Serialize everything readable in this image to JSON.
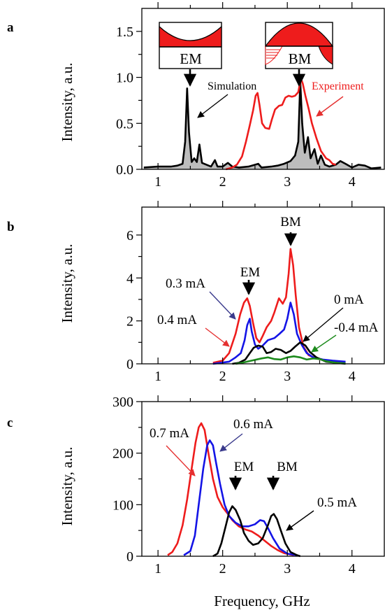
{
  "figure": {
    "xlabel": "Frequency, GHz",
    "colors": {
      "black": "#000000",
      "red": "#ee1c1c",
      "blue": "#1414e6",
      "green": "#1c8a1c",
      "gray_fill": "#bdbdbd",
      "arrow_navy": "#3a3a8c",
      "arrow_red": "#e53030"
    }
  },
  "chart_data": [
    {
      "panel": "a",
      "type": "line",
      "ylabel": "Intensity, a.u.",
      "xlim": [
        0.75,
        4.5
      ],
      "ylim": [
        0,
        1.75
      ],
      "xticks": [
        "1",
        "2",
        "3",
        "4"
      ],
      "yticks": [
        "0.0",
        "0.5",
        "1.0",
        "1.5"
      ],
      "ytick_values": [
        0,
        0.5,
        1.0,
        1.5
      ],
      "annotations": {
        "simulation": "Simulation",
        "experiment": "Experiment",
        "em": "EM",
        "bm": "BM"
      },
      "series": [
        {
          "name": "Simulation",
          "color": "#000000",
          "fill": "#bdbdbd",
          "points": [
            [
              0.78,
              0.02
            ],
            [
              1.0,
              0.03
            ],
            [
              1.2,
              0.03
            ],
            [
              1.3,
              0.04
            ],
            [
              1.38,
              0.06
            ],
            [
              1.42,
              0.3
            ],
            [
              1.45,
              0.88
            ],
            [
              1.48,
              0.4
            ],
            [
              1.52,
              0.08
            ],
            [
              1.56,
              0.12
            ],
            [
              1.6,
              0.08
            ],
            [
              1.64,
              0.27
            ],
            [
              1.68,
              0.07
            ],
            [
              1.75,
              0.05
            ],
            [
              1.82,
              0.03
            ],
            [
              1.88,
              0.1
            ],
            [
              1.92,
              0.03
            ],
            [
              2.0,
              0.03
            ],
            [
              2.08,
              0.07
            ],
            [
              2.15,
              0.03
            ],
            [
              2.25,
              0.02
            ],
            [
              2.4,
              0.03
            ],
            [
              2.55,
              0.06
            ],
            [
              2.6,
              0.02
            ],
            [
              2.75,
              0.03
            ],
            [
              2.85,
              0.04
            ],
            [
              2.95,
              0.06
            ],
            [
              3.05,
              0.09
            ],
            [
              3.12,
              0.15
            ],
            [
              3.17,
              0.3
            ],
            [
              3.2,
              0.96
            ],
            [
              3.23,
              0.5
            ],
            [
              3.27,
              0.18
            ],
            [
              3.32,
              0.35
            ],
            [
              3.36,
              0.12
            ],
            [
              3.42,
              0.22
            ],
            [
              3.47,
              0.06
            ],
            [
              3.52,
              0.15
            ],
            [
              3.58,
              0.05
            ],
            [
              3.65,
              0.03
            ],
            [
              3.75,
              0.05
            ],
            [
              3.82,
              0.09
            ],
            [
              3.9,
              0.06
            ],
            [
              4.0,
              0.02
            ],
            [
              4.1,
              0.05
            ],
            [
              4.2,
              0.04
            ],
            [
              4.3,
              0.01
            ],
            [
              4.45,
              0.02
            ]
          ]
        },
        {
          "name": "Experiment",
          "color": "#ee1c1c",
          "points": [
            [
              2.05,
              0.0
            ],
            [
              2.15,
              0.02
            ],
            [
              2.22,
              0.05
            ],
            [
              2.3,
              0.14
            ],
            [
              2.36,
              0.3
            ],
            [
              2.42,
              0.48
            ],
            [
              2.47,
              0.64
            ],
            [
              2.51,
              0.8
            ],
            [
              2.54,
              0.83
            ],
            [
              2.57,
              0.7
            ],
            [
              2.61,
              0.5
            ],
            [
              2.66,
              0.45
            ],
            [
              2.72,
              0.44
            ],
            [
              2.76,
              0.54
            ],
            [
              2.81,
              0.65
            ],
            [
              2.87,
              0.69
            ],
            [
              2.92,
              0.7
            ],
            [
              2.97,
              0.78
            ],
            [
              3.02,
              0.8
            ],
            [
              3.07,
              0.79
            ],
            [
              3.12,
              0.8
            ],
            [
              3.17,
              0.84
            ],
            [
              3.21,
              0.99
            ],
            [
              3.24,
              0.93
            ],
            [
              3.28,
              0.8
            ],
            [
              3.33,
              0.66
            ],
            [
              3.38,
              0.5
            ],
            [
              3.45,
              0.34
            ],
            [
              3.52,
              0.2
            ],
            [
              3.6,
              0.12
            ],
            [
              3.65,
              0.1
            ],
            [
              3.7,
              0.06
            ],
            [
              3.75,
              0.05
            ]
          ]
        }
      ]
    },
    {
      "panel": "b",
      "type": "line",
      "ylabel": "Intensity, a.u.",
      "xlim": [
        0.75,
        4.5
      ],
      "ylim": [
        0,
        7.3
      ],
      "xticks": [
        "1",
        "2",
        "3",
        "4"
      ],
      "yticks": [
        "0",
        "2",
        "4",
        "6"
      ],
      "ytick_values": [
        0,
        2,
        4,
        6
      ],
      "annotations": {
        "em": "EM",
        "bm": "BM"
      },
      "series": [
        {
          "name": "0.4 mA",
          "color": "#ee1c1c",
          "points": [
            [
              1.85,
              0.05
            ],
            [
              2.0,
              0.15
            ],
            [
              2.1,
              0.5
            ],
            [
              2.2,
              1.4
            ],
            [
              2.27,
              2.3
            ],
            [
              2.33,
              2.85
            ],
            [
              2.38,
              3.05
            ],
            [
              2.42,
              2.7
            ],
            [
              2.47,
              1.9
            ],
            [
              2.52,
              1.2
            ],
            [
              2.57,
              1.0
            ],
            [
              2.62,
              1.3
            ],
            [
              2.68,
              1.7
            ],
            [
              2.75,
              2.0
            ],
            [
              2.8,
              2.4
            ],
            [
              2.87,
              3.05
            ],
            [
              2.93,
              2.8
            ],
            [
              2.98,
              3.1
            ],
            [
              3.02,
              4.2
            ],
            [
              3.05,
              5.35
            ],
            [
              3.09,
              4.6
            ],
            [
              3.13,
              3.2
            ],
            [
              3.18,
              1.7
            ],
            [
              3.25,
              0.8
            ],
            [
              3.33,
              0.4
            ],
            [
              3.45,
              0.25
            ],
            [
              3.6,
              0.15
            ],
            [
              3.75,
              0.1
            ],
            [
              3.9,
              0.05
            ]
          ]
        },
        {
          "name": "0.3 mA",
          "color": "#1414e6",
          "points": [
            [
              1.85,
              0.0
            ],
            [
              2.1,
              0.1
            ],
            [
              2.2,
              0.3
            ],
            [
              2.28,
              0.5
            ],
            [
              2.34,
              1.1
            ],
            [
              2.38,
              1.8
            ],
            [
              2.42,
              2.1
            ],
            [
              2.45,
              1.5
            ],
            [
              2.5,
              0.9
            ],
            [
              2.55,
              0.7
            ],
            [
              2.62,
              0.85
            ],
            [
              2.7,
              1.1
            ],
            [
              2.8,
              1.2
            ],
            [
              2.88,
              1.4
            ],
            [
              2.95,
              1.6
            ],
            [
              3.0,
              2.1
            ],
            [
              3.05,
              2.85
            ],
            [
              3.1,
              2.3
            ],
            [
              3.15,
              1.4
            ],
            [
              3.22,
              0.9
            ],
            [
              3.3,
              0.5
            ],
            [
              3.4,
              0.3
            ],
            [
              3.55,
              0.2
            ],
            [
              3.7,
              0.15
            ],
            [
              3.9,
              0.1
            ]
          ]
        },
        {
          "name": "0 mA",
          "color": "#000000",
          "points": [
            [
              2.15,
              0.0
            ],
            [
              2.25,
              0.05
            ],
            [
              2.35,
              0.2
            ],
            [
              2.42,
              0.5
            ],
            [
              2.48,
              0.75
            ],
            [
              2.55,
              0.85
            ],
            [
              2.62,
              0.8
            ],
            [
              2.68,
              0.5
            ],
            [
              2.75,
              0.55
            ],
            [
              2.82,
              0.7
            ],
            [
              2.9,
              0.65
            ],
            [
              2.98,
              0.5
            ],
            [
              3.05,
              0.6
            ],
            [
              3.12,
              0.8
            ],
            [
              3.2,
              1.0
            ],
            [
              3.28,
              0.85
            ],
            [
              3.35,
              0.55
            ],
            [
              3.45,
              0.3
            ],
            [
              3.6,
              0.1
            ],
            [
              3.75,
              0.05
            ],
            [
              3.9,
              0.0
            ]
          ]
        },
        {
          "name": "-0.4 mA",
          "color": "#1c8a1c",
          "points": [
            [
              2.2,
              0.0
            ],
            [
              2.3,
              0.05
            ],
            [
              2.45,
              0.15
            ],
            [
              2.6,
              0.25
            ],
            [
              2.7,
              0.3
            ],
            [
              2.8,
              0.22
            ],
            [
              2.9,
              0.2
            ],
            [
              3.0,
              0.3
            ],
            [
              3.1,
              0.35
            ],
            [
              3.2,
              0.3
            ],
            [
              3.3,
              0.2
            ],
            [
              3.4,
              0.25
            ],
            [
              3.5,
              0.22
            ],
            [
              3.6,
              0.12
            ],
            [
              3.75,
              0.05
            ],
            [
              3.9,
              0.02
            ]
          ]
        }
      ]
    },
    {
      "panel": "c",
      "type": "line",
      "ylabel": "Intensity, a.u.",
      "xlim": [
        0.75,
        4.5
      ],
      "ylim": [
        0,
        300
      ],
      "xticks": [
        "1",
        "2",
        "3",
        "4"
      ],
      "yticks": [
        "0",
        "100",
        "200",
        "300"
      ],
      "ytick_values": [
        0,
        100,
        200,
        300
      ],
      "annotations": {
        "em": "EM",
        "bm": "BM"
      },
      "series": [
        {
          "name": "0.7 mA",
          "color": "#ee1c1c",
          "points": [
            [
              1.15,
              2
            ],
            [
              1.22,
              8
            ],
            [
              1.3,
              25
            ],
            [
              1.38,
              60
            ],
            [
              1.45,
              110
            ],
            [
              1.52,
              170
            ],
            [
              1.58,
              220
            ],
            [
              1.63,
              250
            ],
            [
              1.67,
              258
            ],
            [
              1.72,
              245
            ],
            [
              1.78,
              200
            ],
            [
              1.85,
              150
            ],
            [
              1.92,
              115
            ],
            [
              2.0,
              95
            ],
            [
              2.08,
              82
            ],
            [
              2.15,
              70
            ],
            [
              2.25,
              58
            ],
            [
              2.35,
              52
            ],
            [
              2.45,
              48
            ],
            [
              2.55,
              40
            ],
            [
              2.65,
              30
            ],
            [
              2.75,
              20
            ],
            [
              2.85,
              12
            ],
            [
              2.95,
              6
            ],
            [
              3.1,
              2
            ]
          ]
        },
        {
          "name": "0.6 mA",
          "color": "#1414e6",
          "points": [
            [
              1.4,
              2
            ],
            [
              1.5,
              10
            ],
            [
              1.57,
              40
            ],
            [
              1.63,
              100
            ],
            [
              1.7,
              170
            ],
            [
              1.76,
              215
            ],
            [
              1.8,
              225
            ],
            [
              1.85,
              215
            ],
            [
              1.9,
              180
            ],
            [
              1.96,
              140
            ],
            [
              2.03,
              100
            ],
            [
              2.1,
              78
            ],
            [
              2.2,
              65
            ],
            [
              2.3,
              58
            ],
            [
              2.4,
              58
            ],
            [
              2.5,
              62
            ],
            [
              2.58,
              70
            ],
            [
              2.64,
              68
            ],
            [
              2.7,
              55
            ],
            [
              2.78,
              35
            ],
            [
              2.88,
              15
            ],
            [
              3.0,
              5
            ],
            [
              3.15,
              2
            ]
          ]
        },
        {
          "name": "0.5 mA",
          "color": "#000000",
          "points": [
            [
              1.85,
              0
            ],
            [
              1.92,
              5
            ],
            [
              1.98,
              25
            ],
            [
              2.05,
              60
            ],
            [
              2.1,
              85
            ],
            [
              2.15,
              97
            ],
            [
              2.2,
              90
            ],
            [
              2.27,
              70
            ],
            [
              2.33,
              45
            ],
            [
              2.4,
              30
            ],
            [
              2.47,
              22
            ],
            [
              2.55,
              25
            ],
            [
              2.62,
              35
            ],
            [
              2.7,
              60
            ],
            [
              2.75,
              78
            ],
            [
              2.79,
              82
            ],
            [
              2.84,
              72
            ],
            [
              2.9,
              50
            ],
            [
              2.97,
              25
            ],
            [
              3.05,
              8
            ],
            [
              3.15,
              2
            ],
            [
              3.2,
              0
            ]
          ]
        }
      ]
    }
  ],
  "labels": {
    "panel_a": "a",
    "panel_b": "b",
    "panel_c": "c",
    "b_0_4": "0.4 mA",
    "b_0_3": "0.3 mA",
    "b_0": "0 mA",
    "b_m0_4": "-0.4 mA",
    "c_0_7": "0.7 mA",
    "c_0_6": "0.6 mA",
    "c_0_5": "0.5 mA"
  }
}
